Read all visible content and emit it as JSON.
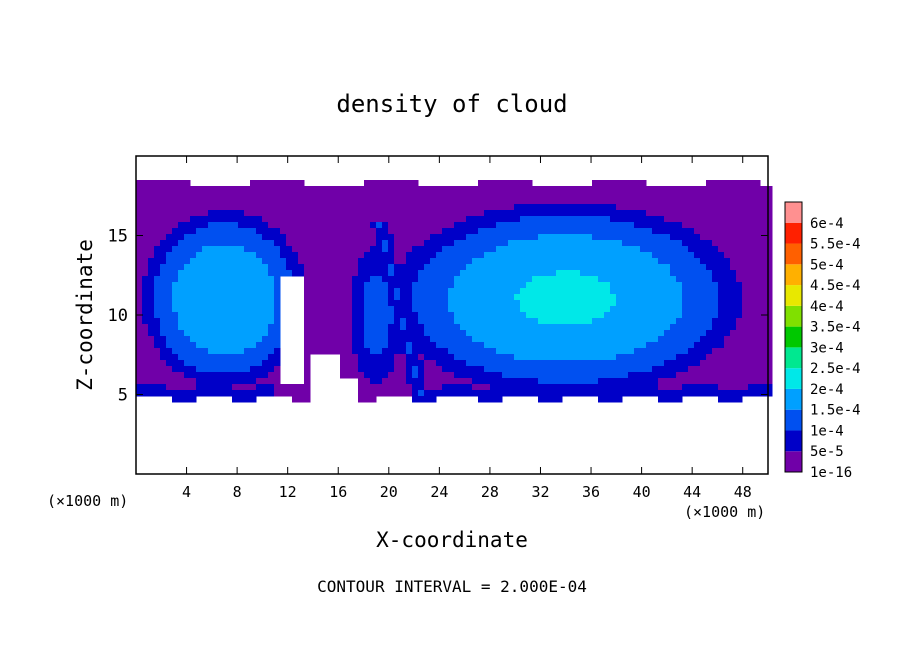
{
  "chart_data": {
    "type": "heatmap",
    "title": "density of cloud",
    "xlabel": "X-coordinate",
    "ylabel": "Z-coordinate",
    "x_unit_label_left": "(×1000 m)",
    "x_unit_label_right": "(×1000 m)",
    "footer": "CONTOUR INTERVAL = 2.000E-04",
    "xlim": [
      0,
      50
    ],
    "ylim": [
      0,
      20
    ],
    "x_ticks": [
      4,
      8,
      12,
      16,
      20,
      24,
      28,
      32,
      36,
      40,
      44,
      48
    ],
    "x_tick_labels": [
      "4",
      "8",
      "12",
      "16",
      "20",
      "24",
      "28",
      "32",
      "36",
      "40",
      "44",
      "48"
    ],
    "y_ticks": [
      5,
      10,
      15
    ],
    "y_tick_labels": [
      "5",
      "10",
      "15"
    ],
    "colorbar": {
      "levels": [
        1e-16,
        5e-05,
        0.0001,
        0.00015,
        0.0002,
        0.00025,
        0.0003,
        0.00035,
        0.0004,
        0.00045,
        0.0005,
        0.00055,
        0.0006
      ],
      "labels": [
        "1e-16",
        "5e-5",
        "1e-4",
        "1.5e-4",
        "2e-4",
        "2.5e-4",
        "3e-4",
        "3.5e-4",
        "4e-4",
        "4.5e-4",
        "5e-4",
        "5.5e-4",
        "6e-4"
      ],
      "colors": [
        "#7000a8",
        "#0000c8",
        "#0050f0",
        "#00a0ff",
        "#00e8e8",
        "#00e890",
        "#00c800",
        "#80e000",
        "#e8e800",
        "#ffb000",
        "#ff6000",
        "#ff2000",
        "#ff9090"
      ]
    },
    "cloud_regions": [
      {
        "name": "left-cell",
        "cx": 7,
        "cz": 11,
        "rx": 7,
        "rz": 6,
        "peak": 0.0002
      },
      {
        "name": "right-cell",
        "cx": 34,
        "cz": 11,
        "rx": 15,
        "rz": 6.5,
        "peak": 0.00021
      },
      {
        "name": "center-column",
        "cx": 19,
        "cz": 10,
        "rx": 2.5,
        "rz": 5,
        "peak": 0.00012
      }
    ],
    "cloud_top": 18.3,
    "cloud_base": 4.8
  }
}
